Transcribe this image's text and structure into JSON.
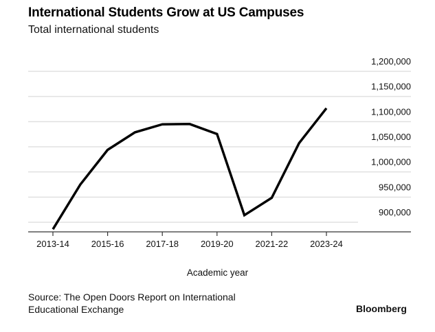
{
  "header": {
    "title": "International Students Grow at US Campuses",
    "subtitle": "Total international students"
  },
  "footer": {
    "source_line1": "Source: The Open Doors Report on International",
    "source_line2": "Educational Exchange",
    "brand": "Bloomberg"
  },
  "colors": {
    "line": "#000000",
    "grid": "#e0e0e0",
    "axis": "#333333"
  },
  "chart_data": {
    "type": "line",
    "title": "International Students Grow at US Campuses",
    "subtitle": "Total international students",
    "xlabel": "Academic year",
    "ylabel": "",
    "x": [
      "2013-14",
      "2014-15",
      "2015-16",
      "2016-17",
      "2017-18",
      "2018-19",
      "2019-20",
      "2020-21",
      "2021-22",
      "2022-23",
      "2023-24"
    ],
    "x_tick_labels": [
      "2013-14",
      "2015-16",
      "2017-18",
      "2019-20",
      "2021-22",
      "2023-24"
    ],
    "series": [
      {
        "name": "Total international students",
        "values": [
          886052,
          974926,
          1043839,
          1078822,
          1094792,
          1095299,
          1075496,
          914095,
          948519,
          1057188,
          1126690
        ]
      }
    ],
    "y_ticks": [
      900000,
      950000,
      1000000,
      1050000,
      1100000,
      1150000,
      1200000
    ],
    "y_tick_labels": [
      "900,000",
      "950,000",
      "1,000,000",
      "1,050,000",
      "1,100,000",
      "1,150,000",
      "1,200,000"
    ],
    "ylim": [
      881000,
      1219000
    ],
    "grid": true,
    "y_axis_position": "right",
    "legend": "none"
  }
}
